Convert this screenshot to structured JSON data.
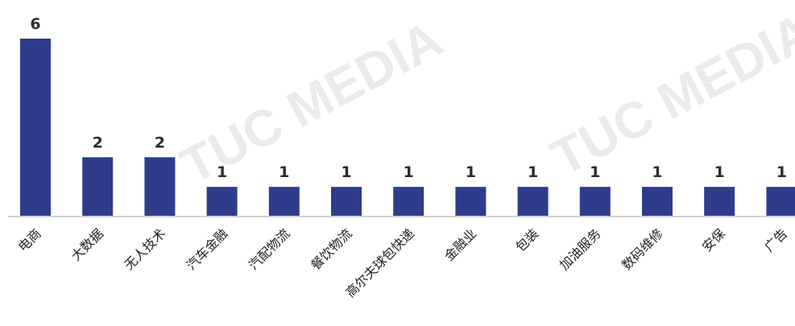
{
  "watermark": {
    "text": "TUC MEDIA"
  },
  "chart_data": {
    "type": "bar",
    "categories": [
      "电商",
      "大数据",
      "无人技术",
      "汽车金融",
      "汽配物流",
      "餐饮物流",
      "高尔夫球包快递",
      "金融业",
      "包装",
      "加油服务",
      "数码维修",
      "安保",
      "广告"
    ],
    "values": [
      6,
      2,
      2,
      1,
      1,
      1,
      1,
      1,
      1,
      1,
      1,
      1,
      1
    ],
    "title": "",
    "xlabel": "",
    "ylabel": "",
    "ylim": [
      0,
      6
    ],
    "grid": false,
    "bar_color": "#2e3c8c",
    "label_color": "#2b2b2b"
  }
}
